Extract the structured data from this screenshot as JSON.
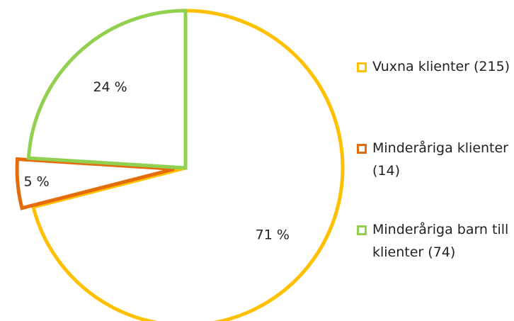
{
  "chart_data": {
    "type": "pie",
    "categories": [
      "Vuxna klienter (215)",
      "Minderåriga klienter (14)",
      "Minderåriga barn till klienter (74)"
    ],
    "values": [
      71,
      5,
      24
    ],
    "value_labels": [
      "71 %",
      "5 %",
      "24 %"
    ],
    "colors": [
      "#FFC000",
      "#E46C0A",
      "#92D050"
    ],
    "exploded": [
      false,
      true,
      false
    ]
  }
}
